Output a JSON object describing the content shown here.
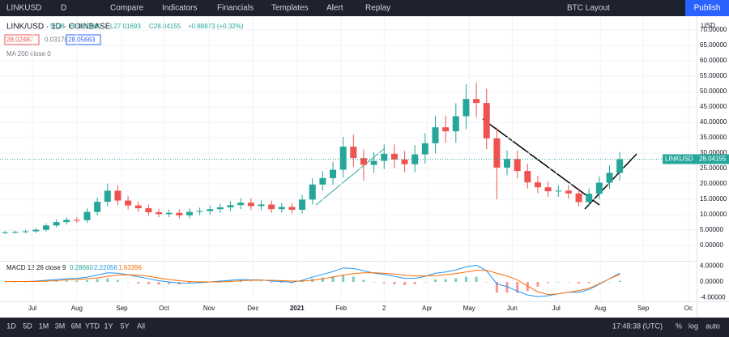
{
  "toolbar": {
    "symbol": "LINKUSD",
    "interval": "D",
    "items": [
      "Compare",
      "Indicators",
      "Financials",
      "Templates",
      "Alert",
      "Replay"
    ],
    "layout": "BTC Layout",
    "publish": "Publish"
  },
  "legend": {
    "title": "LINK/USD · 1D · COINBASE",
    "ohlc": [
      "5678",
      "H30.30000",
      "L27.01693",
      "C28.04155",
      "+0.88873 (+0.32%)"
    ],
    "boxes": [
      "28.02487",
      "0.03176",
      "28.05663"
    ],
    "ma": "MA 200 close 0"
  },
  "chart_data": {
    "type": "candlestick",
    "open": [
      4.1,
      4.3,
      4.4,
      4.6,
      5.1,
      6.5,
      7.6,
      8.3,
      8.2,
      10.9,
      14.2,
      17.8,
      14.6,
      13.0,
      12.1,
      10.8,
      10.2,
      10.6,
      9.8,
      10.9,
      11.2,
      11.8,
      12.4,
      13.1,
      13.9,
      12.8,
      13.3,
      11.8,
      12.5,
      11.6,
      14.9,
      19.8,
      21.9,
      24.6,
      32.1,
      28.4,
      26.2,
      27.5,
      29.8,
      27.9,
      26.4,
      29.6,
      33.2,
      38.4,
      37.1,
      42.0,
      47.6,
      46.3,
      34.8,
      25.3,
      28.1,
      24.2,
      20.5,
      18.9,
      17.6,
      17.8,
      16.9,
      14.1,
      16.8,
      20.4,
      23.6
    ],
    "high": [
      4.7,
      4.8,
      5.1,
      5.6,
      7.2,
      8.4,
      9.1,
      9.1,
      12.0,
      15.6,
      20.1,
      19.6,
      16.1,
      14.3,
      13.3,
      11.9,
      11.7,
      11.7,
      12.0,
      12.3,
      13.0,
      13.6,
      14.4,
      15.3,
      15.3,
      14.6,
      14.6,
      13.8,
      13.8,
      16.4,
      21.8,
      24.1,
      27.1,
      35.3,
      36.0,
      31.2,
      30.3,
      32.8,
      32.8,
      30.7,
      32.6,
      36.5,
      42.2,
      42.2,
      46.2,
      52.4,
      52.9,
      50.9,
      38.3,
      30.9,
      30.9,
      26.6,
      22.6,
      20.8,
      19.6,
      19.6,
      18.6,
      18.5,
      22.4,
      26.0,
      30.3
    ],
    "low": [
      3.7,
      3.9,
      4.0,
      4.1,
      4.6,
      5.9,
      6.8,
      7.4,
      7.4,
      9.8,
      12.8,
      13.1,
      11.7,
      10.9,
      9.7,
      9.2,
      9.2,
      8.8,
      8.8,
      9.8,
      10.1,
      10.6,
      11.2,
      11.8,
      11.5,
      11.5,
      10.6,
      10.6,
      10.4,
      10.4,
      13.4,
      17.8,
      19.7,
      22.1,
      25.6,
      21.0,
      23.6,
      24.8,
      25.1,
      23.8,
      23.8,
      26.6,
      29.9,
      33.4,
      33.4,
      37.8,
      41.7,
      31.3,
      15.0,
      22.8,
      21.8,
      18.5,
      17.0,
      15.8,
      15.8,
      15.2,
      12.7,
      12.7,
      15.1,
      18.4,
      21.2
    ],
    "close": [
      4.3,
      4.4,
      4.6,
      5.1,
      6.5,
      7.6,
      8.3,
      8.2,
      10.9,
      14.2,
      17.8,
      14.6,
      13.0,
      12.1,
      10.8,
      10.2,
      10.6,
      9.8,
      10.9,
      11.2,
      11.8,
      12.4,
      13.1,
      13.9,
      12.8,
      13.3,
      11.8,
      12.5,
      11.6,
      14.9,
      19.8,
      21.9,
      24.6,
      32.1,
      28.4,
      26.2,
      27.5,
      29.8,
      27.9,
      26.4,
      29.6,
      33.2,
      38.4,
      37.1,
      42.0,
      47.6,
      46.3,
      34.8,
      25.3,
      28.1,
      24.2,
      20.5,
      18.9,
      17.6,
      17.8,
      16.9,
      14.1,
      16.8,
      20.4,
      23.6,
      28.04
    ],
    "up_color": "#26a69a",
    "down_color": "#ef5350",
    "xlim": [
      0,
      68
    ],
    "xticks": [
      {
        "value": 3.16,
        "label": "Jul"
      },
      {
        "value": 7.5,
        "label": "Aug"
      },
      {
        "value": 11.9,
        "label": "Sep"
      },
      {
        "value": 16.0,
        "label": "Oct"
      },
      {
        "value": 20.4,
        "label": "Nov"
      },
      {
        "value": 24.7,
        "label": "Dec"
      },
      {
        "value": 29.0,
        "label": "2021"
      },
      {
        "value": 33.3,
        "label": "Feb"
      },
      {
        "value": 37.5,
        "label": "2"
      },
      {
        "value": 41.7,
        "label": "Apr"
      },
      {
        "value": 45.8,
        "label": "May"
      },
      {
        "value": 50.0,
        "label": "Jun"
      },
      {
        "value": 54.3,
        "label": "Jul"
      },
      {
        "value": 58.6,
        "label": "Aug"
      },
      {
        "value": 62.8,
        "label": "Sep"
      },
      {
        "value": 67.2,
        "label": "Oc"
      }
    ],
    "ylim": [
      -5,
      74.5
    ],
    "yticks": [
      {
        "value": 0,
        "label": "0.00000"
      },
      {
        "value": 5,
        "label": "5.00000"
      },
      {
        "value": 10,
        "label": "10.00000"
      },
      {
        "value": 15,
        "label": "15.00000"
      },
      {
        "value": 20,
        "label": "20.00000"
      },
      {
        "value": 25,
        "label": "25.00000"
      },
      {
        "value": 30,
        "label": "30.00000"
      },
      {
        "value": 35,
        "label": "35.00000"
      },
      {
        "value": 40,
        "label": "40.00000"
      },
      {
        "value": 45,
        "label": "45.00000"
      },
      {
        "value": 50,
        "label": "50.00000"
      },
      {
        "value": 55,
        "label": "55.00000"
      },
      {
        "value": 60,
        "label": "60.00000"
      },
      {
        "value": 65,
        "label": "65.00000"
      },
      {
        "value": 70,
        "label": "70.00000"
      }
    ],
    "currency": "USD",
    "last_symbol": "LINKUSD",
    "last_price": 28.04155,
    "grid": true
  },
  "macd": {
    "title": "MACD 12 26 close 9",
    "readout": [
      "0.28660",
      "2.22056",
      "1.93396"
    ],
    "series": [
      {
        "name": "MACD",
        "color": "#2196f3",
        "values": [
          0.1,
          0.1,
          0.1,
          0.2,
          0.4,
          0.6,
          0.8,
          0.9,
          1.2,
          1.7,
          2.3,
          2.2,
          1.8,
          1.3,
          0.8,
          0.3,
          0.0,
          -0.3,
          -0.3,
          -0.2,
          0.0,
          0.2,
          0.4,
          0.6,
          0.5,
          0.5,
          0.2,
          0.1,
          -0.1,
          0.4,
          1.2,
          1.9,
          2.6,
          3.5,
          3.4,
          2.8,
          2.2,
          1.9,
          1.4,
          0.9,
          0.9,
          1.4,
          2.2,
          2.5,
          3.0,
          3.8,
          4.2,
          2.8,
          -0.5,
          -1.2,
          -2.3,
          -3.3,
          -3.7,
          -3.5,
          -3.0,
          -2.6,
          -2.6,
          -1.9,
          -0.6,
          0.8,
          2.2
        ]
      },
      {
        "name": "Signal",
        "color": "#ff6d00",
        "values": [
          0.1,
          0.1,
          0.1,
          0.1,
          0.2,
          0.3,
          0.5,
          0.6,
          0.8,
          1.0,
          1.4,
          1.7,
          1.8,
          1.7,
          1.4,
          1.0,
          0.6,
          0.3,
          0.1,
          0.0,
          0.0,
          0.0,
          0.1,
          0.3,
          0.4,
          0.4,
          0.4,
          0.3,
          0.2,
          0.2,
          0.4,
          0.8,
          1.2,
          1.7,
          2.1,
          2.3,
          2.3,
          2.2,
          2.0,
          1.7,
          1.5,
          1.5,
          1.6,
          1.8,
          2.1,
          2.5,
          2.9,
          2.9,
          2.2,
          1.5,
          0.5,
          -1.0,
          -2.5,
          -3.2,
          -3.0,
          -2.6,
          -2.2,
          -1.6,
          -0.5,
          0.8,
          1.9
        ]
      }
    ],
    "histogram": [
      0,
      0,
      0,
      0.1,
      0.2,
      0.3,
      0.3,
      0.3,
      0.4,
      0.7,
      0.9,
      0.5,
      0,
      -0.4,
      -0.6,
      -0.7,
      -0.6,
      -0.6,
      -0.4,
      -0.2,
      0,
      0.2,
      0.3,
      0.3,
      0.1,
      0.1,
      -0.2,
      -0.2,
      -0.3,
      0.2,
      0.8,
      1.1,
      1.4,
      1.8,
      1.3,
      0.5,
      -0.1,
      -0.3,
      -0.6,
      -0.8,
      -0.6,
      -0.1,
      0.6,
      0.7,
      0.9,
      1.3,
      1.3,
      -0.1,
      -2.7,
      -2.7,
      -2.8,
      -2.3,
      -1.2,
      -0.3,
      0,
      0,
      -0.4,
      -0.3,
      -0.1,
      0,
      0.3
    ],
    "ylim": [
      -4.9,
      5.1
    ],
    "yticks": [
      {
        "value": 4,
        "label": "4.00000"
      },
      {
        "value": 0,
        "label": "0.00000"
      },
      {
        "value": -4,
        "label": "-4.00000"
      }
    ]
  },
  "bottom_bar": {
    "ranges": [
      "1D",
      "5D",
      "1M",
      "3M",
      "6M",
      "YTD",
      "1Y",
      "5Y",
      "All"
    ],
    "clock": "17:48:38 (UTC)",
    "options": [
      "%",
      "log",
      "auto"
    ]
  }
}
